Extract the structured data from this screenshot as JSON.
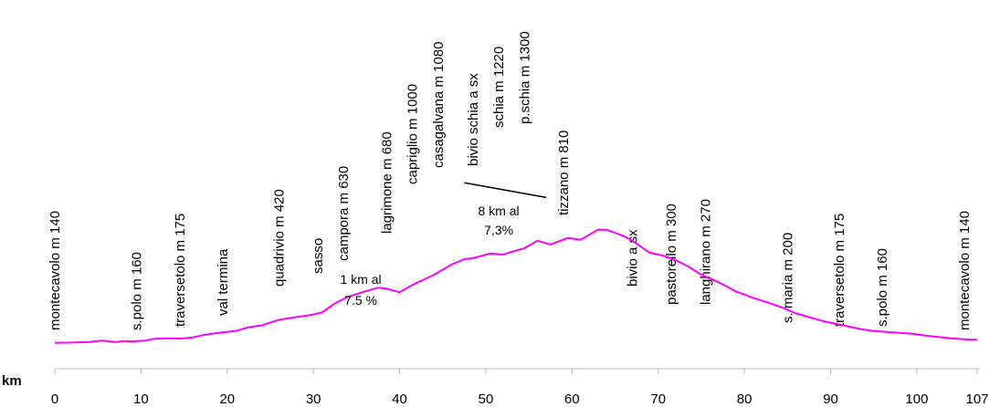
{
  "chart_data": {
    "type": "line",
    "x_unit_label": "km",
    "xlim": [
      0,
      107
    ],
    "x_ticks": [
      0,
      10,
      20,
      30,
      40,
      50,
      60,
      70,
      80,
      90,
      100,
      107
    ],
    "colors": {
      "line": "#ff00ff",
      "grade_marker": "#000000"
    },
    "grid": false,
    "series": [
      {
        "values": [
          [
            0,
            140
          ],
          [
            2,
            142
          ],
          [
            4,
            145
          ],
          [
            5.5,
            152
          ],
          [
            7,
            145
          ],
          [
            8,
            150
          ],
          [
            9,
            148
          ],
          [
            10.5,
            152
          ],
          [
            11.5,
            162
          ],
          [
            13,
            165
          ],
          [
            14.5,
            163
          ],
          [
            16,
            170
          ],
          [
            17.5,
            185
          ],
          [
            19,
            195
          ],
          [
            21,
            205
          ],
          [
            22.5,
            225
          ],
          [
            24,
            235
          ],
          [
            26,
            265
          ],
          [
            28,
            280
          ],
          [
            29.5,
            290
          ],
          [
            31,
            305
          ],
          [
            32.5,
            355
          ],
          [
            34,
            390
          ],
          [
            36,
            420
          ],
          [
            37.5,
            440
          ],
          [
            38.5,
            435
          ],
          [
            40,
            415
          ],
          [
            41.5,
            455
          ],
          [
            44,
            510
          ],
          [
            46,
            565
          ],
          [
            47.5,
            595
          ],
          [
            48.5,
            600
          ],
          [
            50.5,
            625
          ],
          [
            52,
            620
          ],
          [
            53,
            635
          ],
          [
            54.5,
            655
          ],
          [
            56,
            695
          ],
          [
            57.5,
            675
          ],
          [
            59.5,
            710
          ],
          [
            61,
            700
          ],
          [
            63,
            755
          ],
          [
            64,
            755
          ],
          [
            66,
            720
          ],
          [
            67,
            695
          ],
          [
            69,
            630
          ],
          [
            70.5,
            615
          ],
          [
            72,
            590
          ],
          [
            73.5,
            555
          ],
          [
            75,
            510
          ],
          [
            77,
            470
          ],
          [
            79,
            420
          ],
          [
            81,
            385
          ],
          [
            83,
            355
          ],
          [
            84.5,
            330
          ],
          [
            86,
            300
          ],
          [
            87.5,
            280
          ],
          [
            89,
            260
          ],
          [
            90.5,
            245
          ],
          [
            92,
            230
          ],
          [
            93.5,
            215
          ],
          [
            95,
            205
          ],
          [
            96.5,
            200
          ],
          [
            98,
            195
          ],
          [
            99.5,
            190
          ],
          [
            101,
            180
          ],
          [
            102.5,
            172
          ],
          [
            104,
            165
          ],
          [
            105.5,
            160
          ],
          [
            106.5,
            157
          ],
          [
            107,
            158
          ]
        ]
      }
    ],
    "places": [
      {
        "km": 0,
        "label": "montecavolo m 140"
      },
      {
        "km": 9.5,
        "label": "s.polo m 160"
      },
      {
        "km": 14.5,
        "label": "traversetolo m 175"
      },
      {
        "km": 19.5,
        "label": "val termina"
      },
      {
        "km": 26,
        "label": "quadrivio m 420"
      },
      {
        "km": 30.5,
        "label": "sasso"
      },
      {
        "km": 33.5,
        "label": "campora  m 630"
      },
      {
        "km": 38.5,
        "label": "lagrimone m 680"
      },
      {
        "km": 41.5,
        "label": "capriglio m 1000"
      },
      {
        "km": 44.5,
        "label": "casagalvana m 1080"
      },
      {
        "km": 48.5,
        "label": "bivio schia a sx"
      },
      {
        "km": 51.5,
        "label": "schia m 1220"
      },
      {
        "km": 54.5,
        "label": "p.schia m 1300"
      },
      {
        "km": 59,
        "label": "tizzano m 810"
      },
      {
        "km": 67,
        "label": "bivio a sx"
      },
      {
        "km": 71.5,
        "label": "pastorello m 300"
      },
      {
        "km": 75.5,
        "label": "langhirano m 270"
      },
      {
        "km": 85,
        "label": "s. maria m 200"
      },
      {
        "km": 91,
        "label": "traversetolo m 175"
      },
      {
        "km": 96,
        "label": "s.polo  m 160"
      },
      {
        "km": 105.5,
        "label": "montecavolo m 140"
      }
    ],
    "annotations": [
      {
        "km": 35.5,
        "line1": "1 km al",
        "line2": "7.5 %"
      },
      {
        "km": 51.5,
        "line1": "8 km al",
        "line2": "7,3%"
      }
    ],
    "grade_segment": {
      "from": [
        47.5,
        1010
      ],
      "to": [
        57,
        930
      ]
    }
  }
}
